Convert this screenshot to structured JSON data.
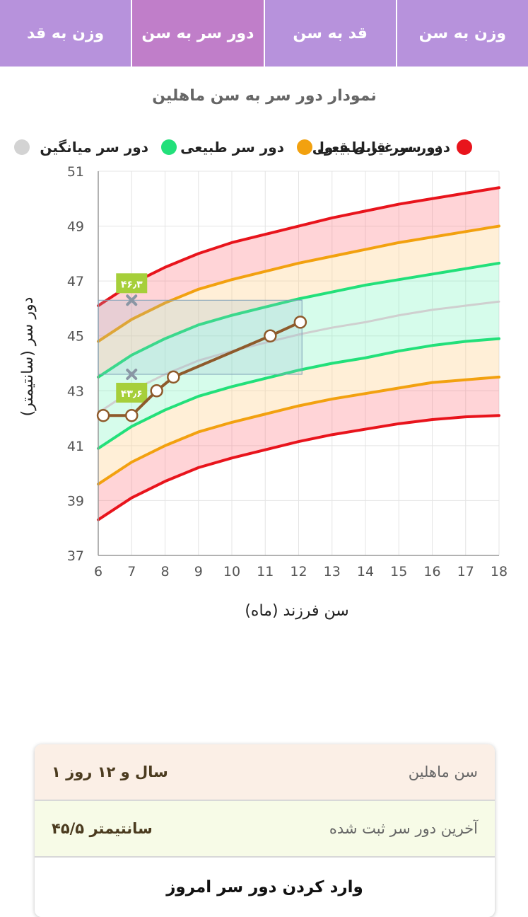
{
  "tabs": [
    {
      "label": "وزن به سن"
    },
    {
      "label": "قد به سن"
    },
    {
      "label": "دور سر به سن",
      "active": true
    },
    {
      "label": "وزن به قد"
    }
  ],
  "chart_title": "نمودار دور سر به سن ماهلین",
  "legend": [
    {
      "label": "دور سر غیر طبیعی",
      "color": "#e8141c"
    },
    {
      "label": "دور سر قابل قبول",
      "color": "#f2a10f"
    },
    {
      "label": "دور سر طبیعی",
      "color": "#22e07a"
    },
    {
      "label": "دور سر میانگین",
      "color": "#d3d3d3"
    }
  ],
  "chart_data": {
    "type": "line",
    "xlabel": "سن فرزند (ماه)",
    "ylabel": "دور سر (سانتیمتر)",
    "xlim": [
      6,
      18
    ],
    "ylim": [
      37,
      51
    ],
    "xticks": [
      6,
      7,
      8,
      9,
      10,
      11,
      12,
      13,
      14,
      15,
      16,
      17,
      18
    ],
    "yticks": [
      37,
      39,
      41,
      43,
      45,
      47,
      49,
      51
    ],
    "grid": true,
    "x": [
      6,
      7,
      8,
      9,
      10,
      11,
      12,
      13,
      14,
      15,
      16,
      17,
      18
    ],
    "series": [
      {
        "name": "دور سر غیر طبیعی",
        "color": "#e8141c",
        "values": [
          46.1,
          46.9,
          47.5,
          48.0,
          48.4,
          48.7,
          49.0,
          49.3,
          49.55,
          49.8,
          50.0,
          50.2,
          50.4
        ]
      },
      {
        "name": "دور سر قابل قبول",
        "color": "#f2a10f",
        "values": [
          44.8,
          45.6,
          46.2,
          46.7,
          47.05,
          47.35,
          47.65,
          47.9,
          48.15,
          48.4,
          48.6,
          48.8,
          49.0
        ]
      },
      {
        "name": "دور سر طبیعی",
        "color": "#22e07a",
        "values": [
          43.5,
          44.3,
          44.9,
          45.4,
          45.75,
          46.05,
          46.35,
          46.6,
          46.85,
          47.05,
          47.25,
          47.45,
          47.65
        ]
      },
      {
        "name": "دور سر میانگین",
        "color": "#cfcfcf",
        "values": [
          42.2,
          43.0,
          43.6,
          44.1,
          44.45,
          44.75,
          45.05,
          45.3,
          45.5,
          45.75,
          45.95,
          46.1,
          46.25
        ]
      },
      {
        "name": "دور سر طبیعی",
        "color": "#22e07a",
        "values": [
          40.9,
          41.7,
          42.3,
          42.8,
          43.15,
          43.45,
          43.75,
          44.0,
          44.2,
          44.45,
          44.65,
          44.8,
          44.9
        ]
      },
      {
        "name": "دور سر قابل قبول",
        "color": "#f2a10f",
        "values": [
          39.6,
          40.4,
          41.0,
          41.5,
          41.85,
          42.15,
          42.45,
          42.7,
          42.9,
          43.1,
          43.3,
          43.4,
          43.5
        ]
      },
      {
        "name": "دور سر غیر طبیعی",
        "color": "#e8141c",
        "values": [
          38.3,
          39.1,
          39.7,
          40.2,
          40.55,
          40.85,
          41.15,
          41.4,
          41.6,
          41.8,
          41.95,
          42.05,
          42.1
        ]
      }
    ],
    "measurements": {
      "color": "#8e5a2b",
      "x": [
        6.15,
        7.0,
        7.75,
        8.25,
        11.15,
        12.05
      ],
      "y": [
        42.1,
        42.1,
        43.0,
        43.5,
        45.0,
        45.5
      ]
    },
    "range_box": {
      "age": 7,
      "top": 46.3,
      "bottom": 43.6,
      "top_label": "۴۶٫۳",
      "bottom_label": "۴۳٫۶",
      "x_end": 12.1
    }
  },
  "info": {
    "age_label": "سن ماهلین",
    "age_value": "۱ سال و ۱۲ روز",
    "last_label": "آخرین دور سر ثبت شده",
    "last_value": "۴۵/۵ سانتیمتر",
    "action_label": "وارد کردن دور سر امروز"
  }
}
